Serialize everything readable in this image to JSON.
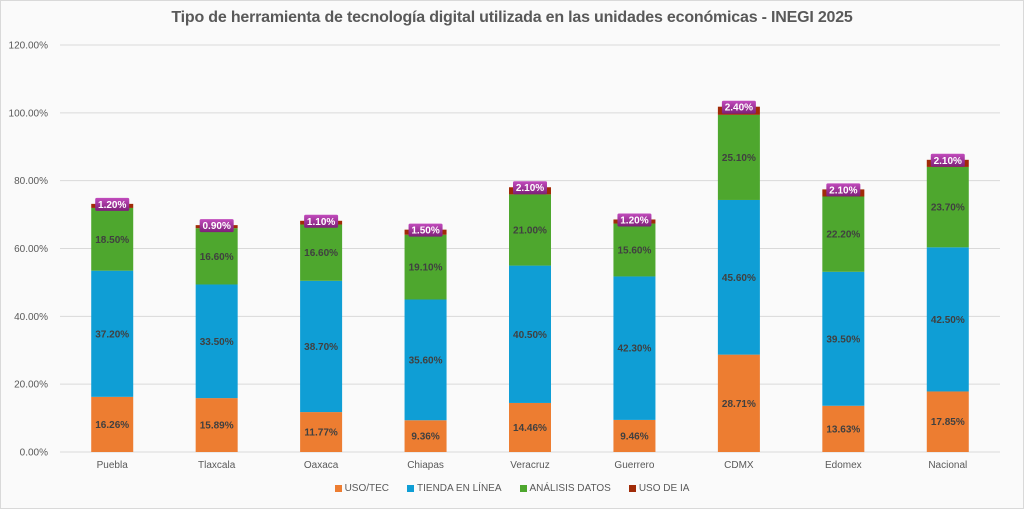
{
  "chart_data": {
    "type": "bar",
    "stacked": true,
    "title": "Tipo de herramienta de tecnología digital utilizada en las unidades económicas - INEGI 2025",
    "xlabel": "",
    "ylabel": "",
    "ylim": [
      0,
      120
    ],
    "yticks": [
      "0.00%",
      "20.00%",
      "40.00%",
      "60.00%",
      "80.00%",
      "100.00%",
      "120.00%"
    ],
    "ytick_values": [
      0,
      20,
      40,
      60,
      80,
      100,
      120
    ],
    "grid": true,
    "legend_position": "bottom",
    "categories": [
      "Puebla",
      "Tlaxcala",
      "Oaxaca",
      "Chiapas",
      "Veracruz",
      "Guerrero",
      "CDMX",
      "Edomex",
      "Nacional"
    ],
    "series": [
      {
        "name": "USO/TEC",
        "color": "#ed7d31",
        "values": [
          16.26,
          15.89,
          11.77,
          9.36,
          14.46,
          9.46,
          28.71,
          13.63,
          17.85
        ],
        "labels": [
          "16.26%",
          "15.89%",
          "11.77%",
          "9.36%",
          "14.46%",
          "9.46%",
          "28.71%",
          "13.63%",
          "17.85%"
        ]
      },
      {
        "name": "TIENDA EN LÍNEA",
        "color": "#0f9ed5",
        "values": [
          37.2,
          33.5,
          38.7,
          35.6,
          40.5,
          42.3,
          45.6,
          39.5,
          42.5
        ],
        "labels": [
          "37.20%",
          "33.50%",
          "38.70%",
          "35.60%",
          "40.50%",
          "42.30%",
          "45.60%",
          "39.50%",
          "42.50%"
        ]
      },
      {
        "name": "ANÁLISIS DATOS",
        "color": "#4ea72e",
        "values": [
          18.5,
          16.6,
          16.6,
          19.1,
          21.0,
          15.6,
          25.1,
          22.2,
          23.7
        ],
        "labels": [
          "18.50%",
          "16.60%",
          "16.60%",
          "19.10%",
          "21.00%",
          "15.60%",
          "25.10%",
          "22.20%",
          "23.70%"
        ]
      },
      {
        "name": "USO DE IA",
        "color": "#a02b08",
        "values": [
          1.2,
          0.9,
          1.1,
          1.5,
          2.1,
          1.2,
          2.4,
          2.1,
          2.1
        ],
        "labels": [
          "1.20%",
          "0.90%",
          "1.10%",
          "1.50%",
          "2.10%",
          "1.20%",
          "2.40%",
          "2.10%",
          "2.10%"
        ]
      }
    ],
    "ia_label_bg": "#a02b9a"
  }
}
